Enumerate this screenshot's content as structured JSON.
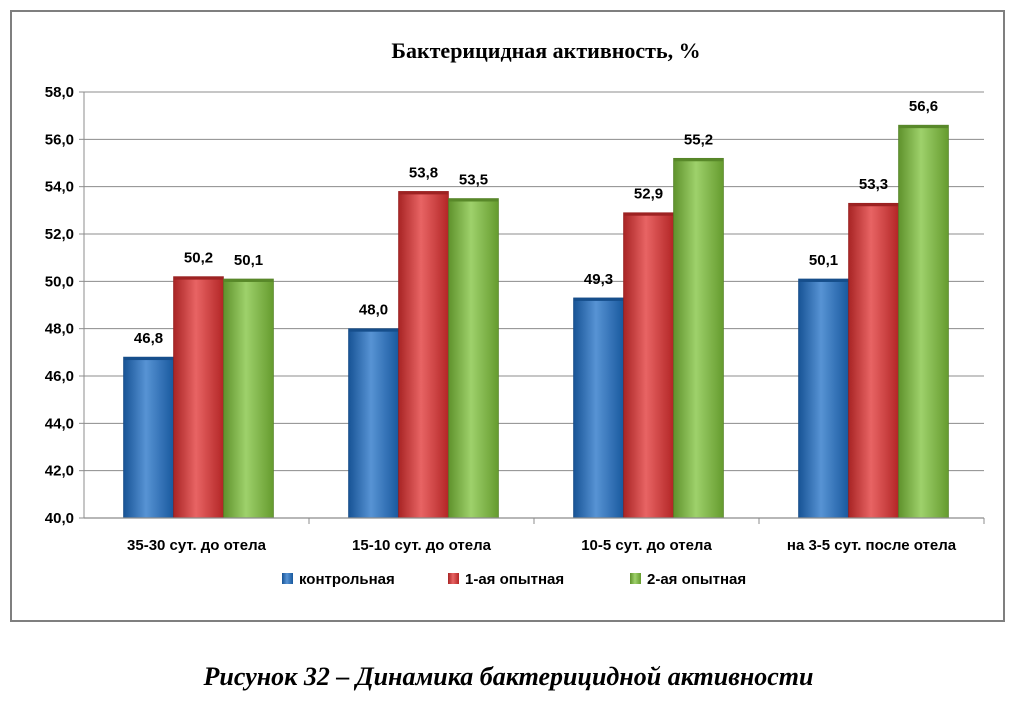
{
  "chart_data": {
    "type": "bar",
    "title": "Бактерицидная активность, %",
    "categories": [
      "35-30 сут. до отела",
      "15-10 сут. до отела",
      "10-5 сут. до отела",
      "на 3-5 сут. после отела"
    ],
    "series": [
      {
        "name": "контрольная",
        "color": "#1f6fc6",
        "values": [
          46.8,
          48.0,
          49.3,
          50.1
        ],
        "labels": [
          "46,8",
          "48,0",
          "49,3",
          "50,1"
        ]
      },
      {
        "name": "1-ая опытная",
        "color": "#e03030",
        "values": [
          50.2,
          53.8,
          52.9,
          53.3
        ],
        "labels": [
          "50,2",
          "53,8",
          "52,9",
          "53,3"
        ]
      },
      {
        "name": "2-ая опытная",
        "color": "#7ec23a",
        "values": [
          50.1,
          53.5,
          55.2,
          56.6
        ],
        "labels": [
          "50,1",
          "53,5",
          "55,2",
          "56,6"
        ]
      }
    ],
    "ylim": [
      40,
      58
    ],
    "yticks": [
      40,
      42,
      44,
      46,
      48,
      50,
      52,
      54,
      56,
      58
    ],
    "ytick_labels": [
      "40,0",
      "42,0",
      "44,0",
      "46,0",
      "48,0",
      "50,0",
      "52,0",
      "54,0",
      "56,0",
      "58,0"
    ],
    "grid": true,
    "legend_position": "bottom"
  },
  "caption": "Рисунок 32 – Динамика бактерицидной активности"
}
